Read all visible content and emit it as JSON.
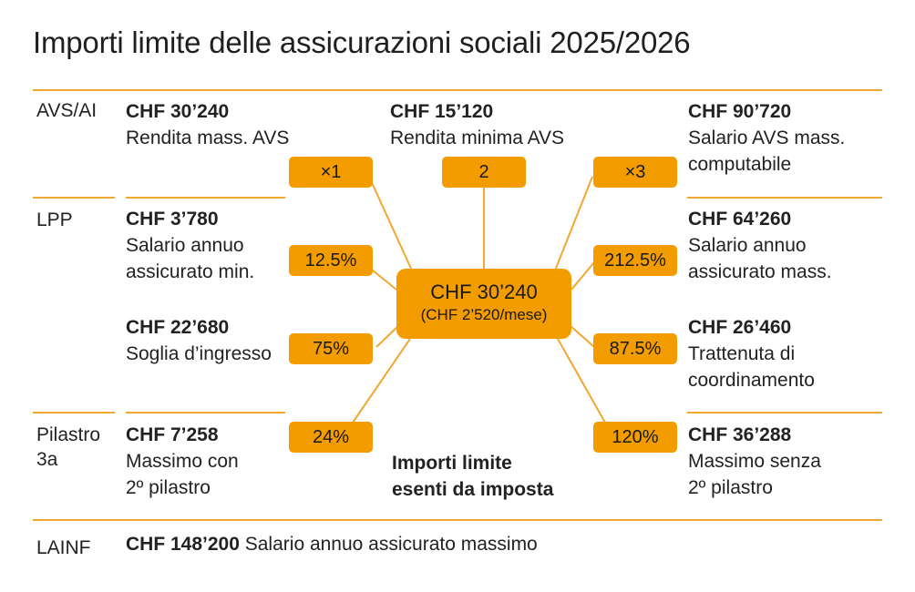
{
  "title": "Importi limite delle assicurazioni sociali 2025/2026",
  "accent_color": "#f39c00",
  "line_color": "#f0a830",
  "center": {
    "value": "CHF 30’240",
    "sub": "(CHF 2’520/mese)",
    "caption_line1": "Importi limite",
    "caption_line2": "esenti da imposta"
  },
  "categories": {
    "avs": "AVS/AI",
    "lpp": "LPP",
    "pilastro_line1": "Pilastro",
    "pilastro_line2": "3a",
    "lainf": "LAINF"
  },
  "items": {
    "avs_max": {
      "amount": "CHF 30’240",
      "label1": "Rendita mass. AVS",
      "label2": "",
      "factor": "×1"
    },
    "avs_min": {
      "amount": "CHF 15’120",
      "label1": "Rendita minima AVS",
      "label2": "",
      "factor": "2"
    },
    "avs_salary": {
      "amount": "CHF 90’720",
      "label1": "Salario AVS mass.",
      "label2": "computabile",
      "factor": "×3"
    },
    "lpp_min": {
      "amount": "CHF 3’780",
      "label1": "Salario annuo",
      "label2": "assicurato min.",
      "factor": "12.5%"
    },
    "lpp_max": {
      "amount": "CHF 64’260",
      "label1": "Salario annuo",
      "label2": "assicurato mass.",
      "factor": "212.5%"
    },
    "lpp_entry": {
      "amount": "CHF 22’680",
      "label1": "Soglia d’ingresso",
      "label2": "",
      "factor": "75%"
    },
    "lpp_coord": {
      "amount": "CHF 26’460",
      "label1": "Trattenuta di",
      "label2": "coordinamento",
      "factor": "87.5%"
    },
    "p3a_with": {
      "amount": "CHF 7’258",
      "label1": "Massimo con",
      "label2": "2º pilastro",
      "factor": "24%"
    },
    "p3a_without": {
      "amount": "CHF 36’288",
      "label1": "Massimo senza",
      "label2": "2º pilastro",
      "factor": "120%"
    }
  },
  "lainf": {
    "amount": "CHF 148’200",
    "label": "Salario annuo assicurato massimo"
  }
}
